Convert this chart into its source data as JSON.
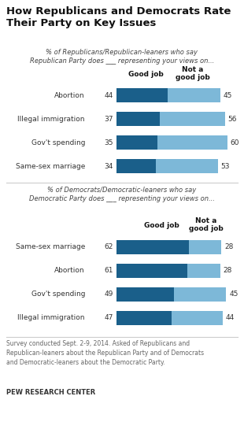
{
  "title": "How Republicans and Democrats Rate\nTheir Party on Key Issues",
  "rep_subtitle": "% of Republicans/Republican-leaners who say\nRepublican Party does ___ representing your views on...",
  "dem_subtitle": "% of Democrats/Democratic-leaners who say\nDemocratic Party does ___ representing your views on...",
  "rep_categories": [
    "Abortion",
    "Illegal immigration",
    "Gov't spending",
    "Same-sex marriage"
  ],
  "rep_good": [
    44,
    37,
    35,
    34
  ],
  "rep_not_good": [
    45,
    56,
    60,
    53
  ],
  "dem_categories": [
    "Same-sex marriage",
    "Abortion",
    "Gov't spending",
    "Illegal immigration"
  ],
  "dem_good": [
    62,
    61,
    49,
    47
  ],
  "dem_not_good": [
    28,
    28,
    45,
    44
  ],
  "color_good": "#1a5f8a",
  "color_not_good": "#7db8d8",
  "footnote": "Survey conducted Sept. 2-9, 2014. Asked of Republicans and\nRepublican-leaners about the Republican Party and of Democrats\nand Democratic-leaners about the Democratic Party.",
  "source": "PEW RESEARCH CENTER",
  "background_color": "#ffffff"
}
